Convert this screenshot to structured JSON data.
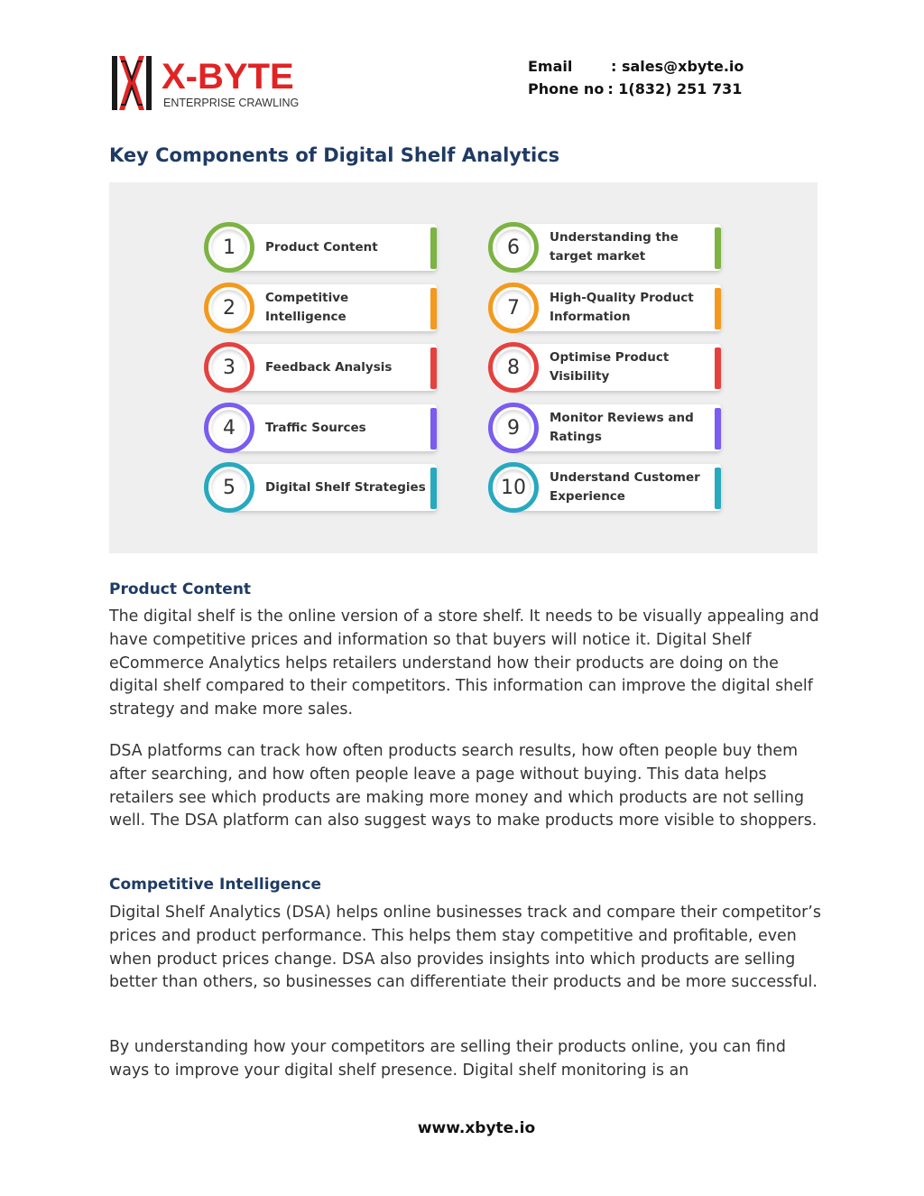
{
  "header": {
    "logo_main": "X-BYTE",
    "logo_sub": "ENTERPRISE CRAWLING",
    "email_label": "Email",
    "email_value": ": sales@xbyte.io",
    "phone_label": "Phone no",
    "phone_value": ": 1(832) 251 731"
  },
  "title": "Key Components of Digital Shelf Analytics",
  "infographic": {
    "items": [
      {
        "num": "1",
        "label": "Product Content",
        "color": "#7cb342"
      },
      {
        "num": "2",
        "label": "Competitive Intelligence",
        "color": "#f39a1e"
      },
      {
        "num": "3",
        "label": "Feedback Analysis",
        "color": "#e4413f"
      },
      {
        "num": "4",
        "label": "Traffic Sources",
        "color": "#7a5cf0"
      },
      {
        "num": "5",
        "label": "Digital Shelf Strategies",
        "color": "#27a9be"
      },
      {
        "num": "6",
        "label": "Understanding the target market",
        "color": "#7cb342"
      },
      {
        "num": "7",
        "label": "High-Quality Product Information",
        "color": "#f39a1e"
      },
      {
        "num": "8",
        "label": "Optimise Product Visibility",
        "color": "#e4413f"
      },
      {
        "num": "9",
        "label": "Monitor Reviews and Ratings",
        "color": "#7a5cf0"
      },
      {
        "num": "10",
        "label": "Understand Customer Experience",
        "color": "#27a9be"
      }
    ]
  },
  "sections": [
    {
      "heading": "Product Content",
      "paragraphs": [
        "The digital shelf is the online version of a store shelf. It needs to be visually appealing and have competitive prices and information so that buyers will notice it. Digital Shelf eCommerce Analytics helps retailers understand how their products are doing on the digital shelf compared to their competitors. This information can improve the digital shelf strategy and make more sales.",
        "DSA platforms can track how often products search results, how often people buy them after searching, and how often people leave a page without buying. This data helps retailers see which products are making more money and which products are not selling well. The DSA platform can also suggest ways to make products more visible to shoppers."
      ]
    },
    {
      "heading": "Competitive Intelligence",
      "paragraphs": [
        "Digital Shelf Analytics (DSA) helps online businesses track and compare their competitor’s prices and product performance. This helps them stay competitive and profitable, even when product prices change. DSA also provides insights into which products are selling better than others, so businesses can differentiate their products and be more successful.",
        "By understanding how your competitors are selling their products online, you can find ways to improve your digital shelf presence. Digital shelf monitoring is an"
      ]
    }
  ],
  "footer": "www.xbyte.io"
}
